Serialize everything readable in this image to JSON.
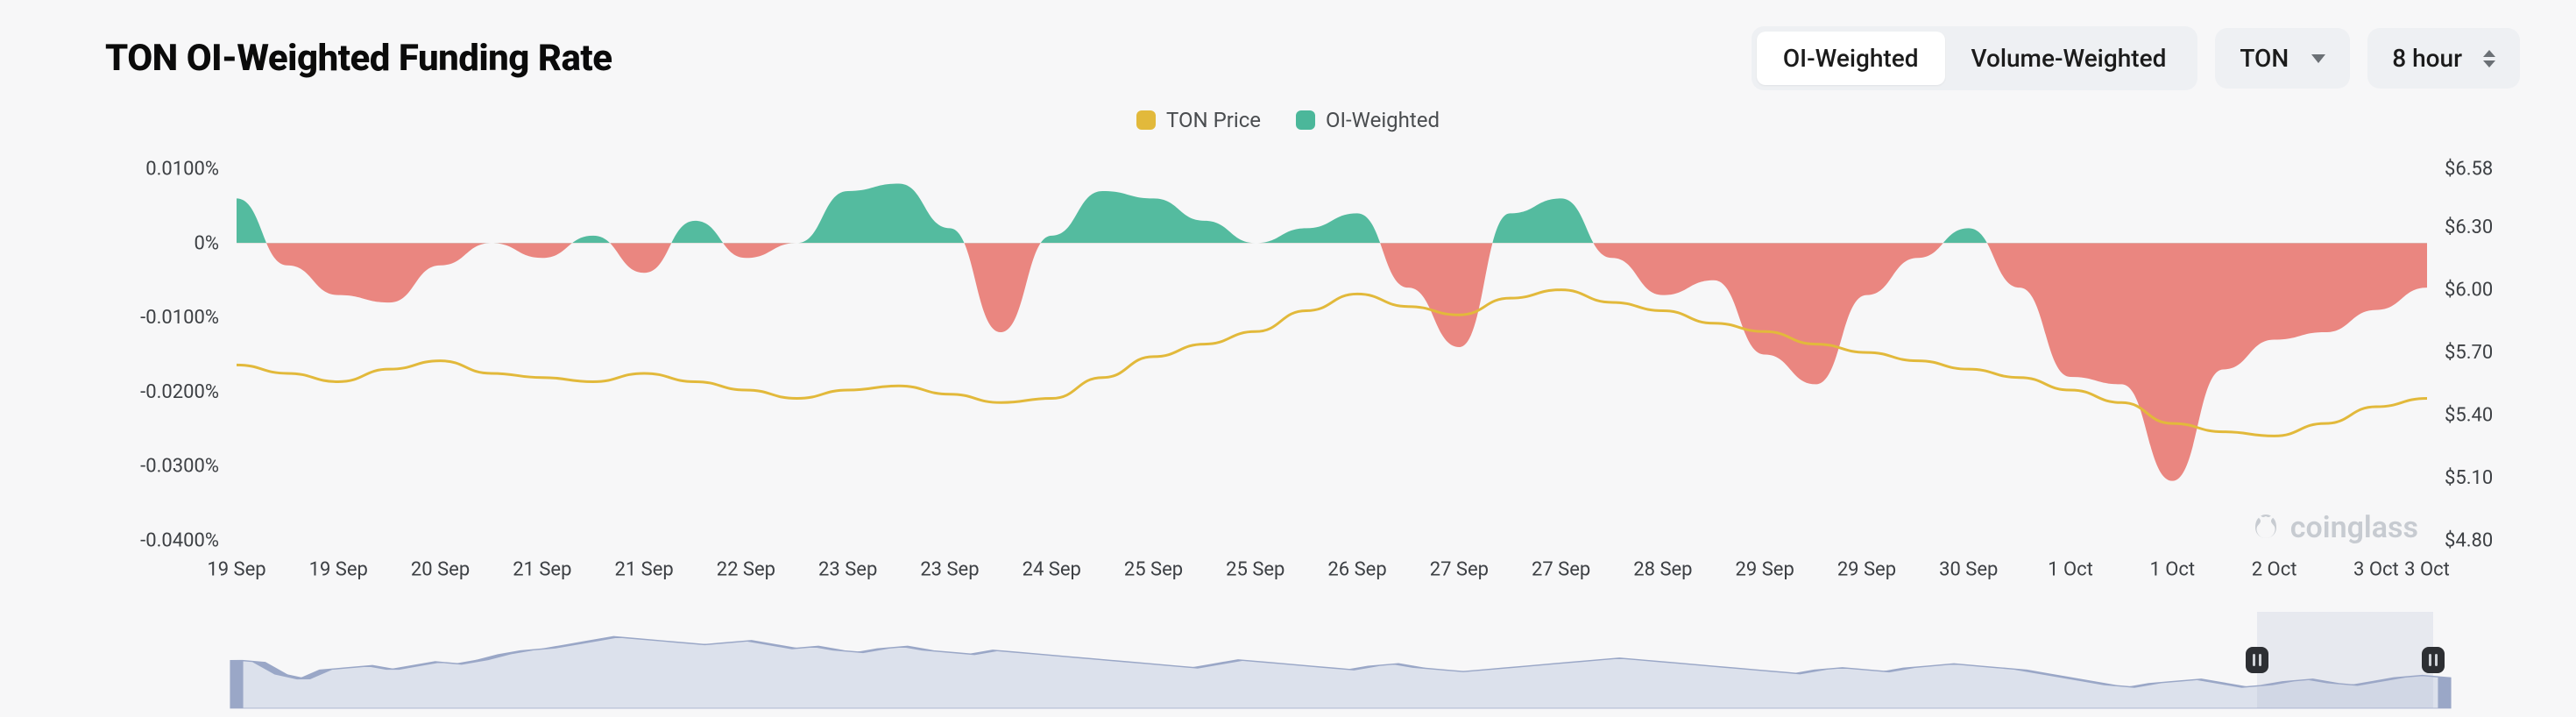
{
  "header": {
    "title": "TON OI-Weighted Funding Rate",
    "tabs": [
      {
        "label": "OI-Weighted",
        "active": true
      },
      {
        "label": "Volume-Weighted",
        "active": false
      }
    ],
    "symbol_select": {
      "value": "TON"
    },
    "interval_select": {
      "value": "8 hour"
    }
  },
  "legend": {
    "items": [
      {
        "label": "TON Price",
        "color": "#e2b93b"
      },
      {
        "label": "OI-Weighted",
        "color": "#4bb79a"
      }
    ]
  },
  "chart": {
    "type": "area+line-dual-axis",
    "background_color": "#f7f7f8",
    "grid_color": "#e8e9eb",
    "axis_font_size": 22,
    "left_axis": {
      "label_fmt": "percent",
      "ylim": [
        -0.04,
        0.01
      ],
      "ticks": [
        {
          "v": 0.01,
          "label": "0.0100%"
        },
        {
          "v": 0.0,
          "label": "0%"
        },
        {
          "v": -0.01,
          "label": "-0.0100%"
        },
        {
          "v": -0.02,
          "label": "-0.0200%"
        },
        {
          "v": -0.03,
          "label": "-0.0300%"
        },
        {
          "v": -0.04,
          "label": "-0.0400%"
        }
      ]
    },
    "right_axis": {
      "label_fmt": "usd",
      "ylim": [
        4.8,
        6.58
      ],
      "ticks": [
        {
          "v": 6.58,
          "label": "$6.58"
        },
        {
          "v": 6.3,
          "label": "$6.30"
        },
        {
          "v": 6.0,
          "label": "$6.00"
        },
        {
          "v": 5.7,
          "label": "$5.70"
        },
        {
          "v": 5.4,
          "label": "$5.40"
        },
        {
          "v": 5.1,
          "label": "$5.10"
        },
        {
          "v": 4.8,
          "label": "$4.80"
        }
      ]
    },
    "x_axis": {
      "domain": [
        0,
        43
      ],
      "ticks": [
        {
          "v": 0,
          "label": "19 Sep"
        },
        {
          "v": 2,
          "label": "19 Sep"
        },
        {
          "v": 4,
          "label": "20 Sep"
        },
        {
          "v": 6,
          "label": "21 Sep"
        },
        {
          "v": 8,
          "label": "21 Sep"
        },
        {
          "v": 10,
          "label": "22 Sep"
        },
        {
          "v": 12,
          "label": "23 Sep"
        },
        {
          "v": 14,
          "label": "23 Sep"
        },
        {
          "v": 16,
          "label": "24 Sep"
        },
        {
          "v": 18,
          "label": "25 Sep"
        },
        {
          "v": 20,
          "label": "25 Sep"
        },
        {
          "v": 22,
          "label": "26 Sep"
        },
        {
          "v": 24,
          "label": "27 Sep"
        },
        {
          "v": 26,
          "label": "27 Sep"
        },
        {
          "v": 28,
          "label": "28 Sep"
        },
        {
          "v": 30,
          "label": "29 Sep"
        },
        {
          "v": 32,
          "label": "29 Sep"
        },
        {
          "v": 34,
          "label": "30 Sep"
        },
        {
          "v": 36,
          "label": "1 Oct"
        },
        {
          "v": 38,
          "label": "1 Oct"
        },
        {
          "v": 40,
          "label": "2 Oct"
        },
        {
          "v": 42,
          "label": "3 Oct"
        },
        {
          "v": 43,
          "label": "3 Oct"
        }
      ]
    },
    "series_funding": {
      "name": "OI-Weighted",
      "positive_fill": "#4bb79a",
      "negative_fill": "#e98079",
      "baseline": 0,
      "data": [
        0.006,
        -0.003,
        -0.007,
        -0.008,
        -0.003,
        0.0,
        -0.002,
        0.001,
        -0.004,
        0.003,
        -0.002,
        0.0,
        0.007,
        0.008,
        0.002,
        -0.012,
        0.001,
        0.007,
        0.006,
        0.003,
        0.0,
        0.002,
        0.004,
        -0.006,
        -0.014,
        0.004,
        0.006,
        -0.002,
        -0.007,
        -0.005,
        -0.015,
        -0.019,
        -0.007,
        -0.002,
        0.002,
        -0.006,
        -0.018,
        -0.019,
        -0.032,
        -0.017,
        -0.013,
        -0.012,
        -0.009,
        -0.006
      ]
    },
    "series_price": {
      "name": "TON Price",
      "stroke": "#e2b93b",
      "stroke_width": 3,
      "data": [
        5.64,
        5.6,
        5.56,
        5.62,
        5.66,
        5.6,
        5.58,
        5.56,
        5.6,
        5.56,
        5.52,
        5.48,
        5.52,
        5.54,
        5.5,
        5.46,
        5.48,
        5.58,
        5.68,
        5.74,
        5.8,
        5.9,
        5.98,
        5.92,
        5.88,
        5.96,
        6.0,
        5.94,
        5.9,
        5.84,
        5.8,
        5.74,
        5.7,
        5.66,
        5.62,
        5.58,
        5.52,
        5.46,
        5.36,
        5.32,
        5.3,
        5.36,
        5.44,
        5.48
      ]
    },
    "watermark": "coinglass"
  },
  "mini": {
    "stroke": "#9aa7c7",
    "fill": "rgba(170,182,214,0.35)",
    "selection": {
      "from": 0.915,
      "to": 0.995
    },
    "data": [
      0.5,
      0.48,
      0.35,
      0.3,
      0.4,
      0.42,
      0.44,
      0.4,
      0.44,
      0.48,
      0.46,
      0.5,
      0.56,
      0.6,
      0.62,
      0.66,
      0.7,
      0.74,
      0.72,
      0.7,
      0.68,
      0.66,
      0.68,
      0.7,
      0.66,
      0.62,
      0.64,
      0.6,
      0.58,
      0.62,
      0.64,
      0.6,
      0.58,
      0.56,
      0.6,
      0.58,
      0.56,
      0.54,
      0.52,
      0.5,
      0.48,
      0.46,
      0.44,
      0.42,
      0.46,
      0.5,
      0.48,
      0.46,
      0.44,
      0.42,
      0.4,
      0.44,
      0.46,
      0.42,
      0.4,
      0.38,
      0.4,
      0.42,
      0.44,
      0.46,
      0.48,
      0.5,
      0.52,
      0.5,
      0.48,
      0.46,
      0.44,
      0.42,
      0.4,
      0.38,
      0.36,
      0.4,
      0.42,
      0.4,
      0.38,
      0.42,
      0.44,
      0.46,
      0.44,
      0.42,
      0.4,
      0.36,
      0.32,
      0.28,
      0.24,
      0.22,
      0.26,
      0.28,
      0.3,
      0.26,
      0.22,
      0.24,
      0.28,
      0.3,
      0.26,
      0.24,
      0.28,
      0.32,
      0.34,
      0.32
    ]
  }
}
